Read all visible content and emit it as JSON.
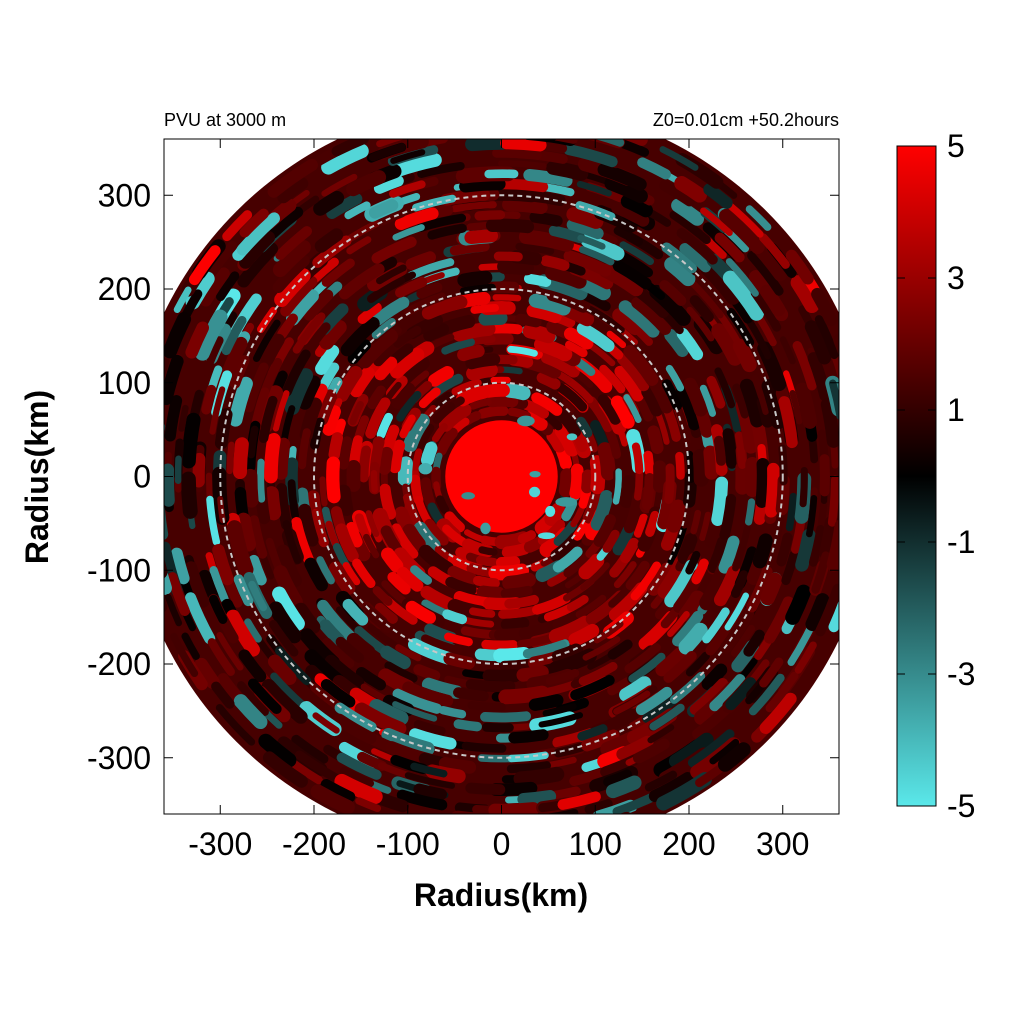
{
  "chart_data": {
    "type": "heatmap",
    "title_left": "PVU at  3000 m",
    "title_right": "Z0=0.01cm  +50.2hours",
    "xlabel": "Radius(km)",
    "ylabel": "Radius(km)",
    "xlim": [
      -360,
      360
    ],
    "ylim": [
      -360,
      360
    ],
    "x_ticks": [
      "-300",
      "-200",
      "-100",
      "0",
      "100",
      "200",
      "300"
    ],
    "y_ticks": [
      "300",
      "200",
      "100",
      "0",
      "-100",
      "-200",
      "-300"
    ],
    "x_tick_values": [
      -300,
      -200,
      -100,
      0,
      100,
      200,
      300
    ],
    "y_tick_values": [
      300,
      200,
      100,
      0,
      -100,
      -200,
      -300
    ],
    "domain_radius_km": 400,
    "range_rings_km": [
      100,
      200,
      300
    ],
    "colorbar": {
      "ticks": [
        "5",
        "3",
        "1",
        "-1",
        "-3",
        "-5"
      ],
      "tick_values": [
        5,
        3,
        1,
        -1,
        -3,
        -5
      ],
      "range": [
        -5,
        5
      ],
      "colors": {
        "max": "#ff0000",
        "zero": "#000000",
        "min": "#5ae8ea"
      }
    },
    "field_summary": {
      "core": {
        "radius_km": 60,
        "value": 5
      },
      "inner_region_value_range": [
        1,
        5
      ],
      "outer_region_value_range": [
        0,
        2.5
      ],
      "negative_patches_value_range": [
        -5,
        -0.5
      ]
    }
  }
}
